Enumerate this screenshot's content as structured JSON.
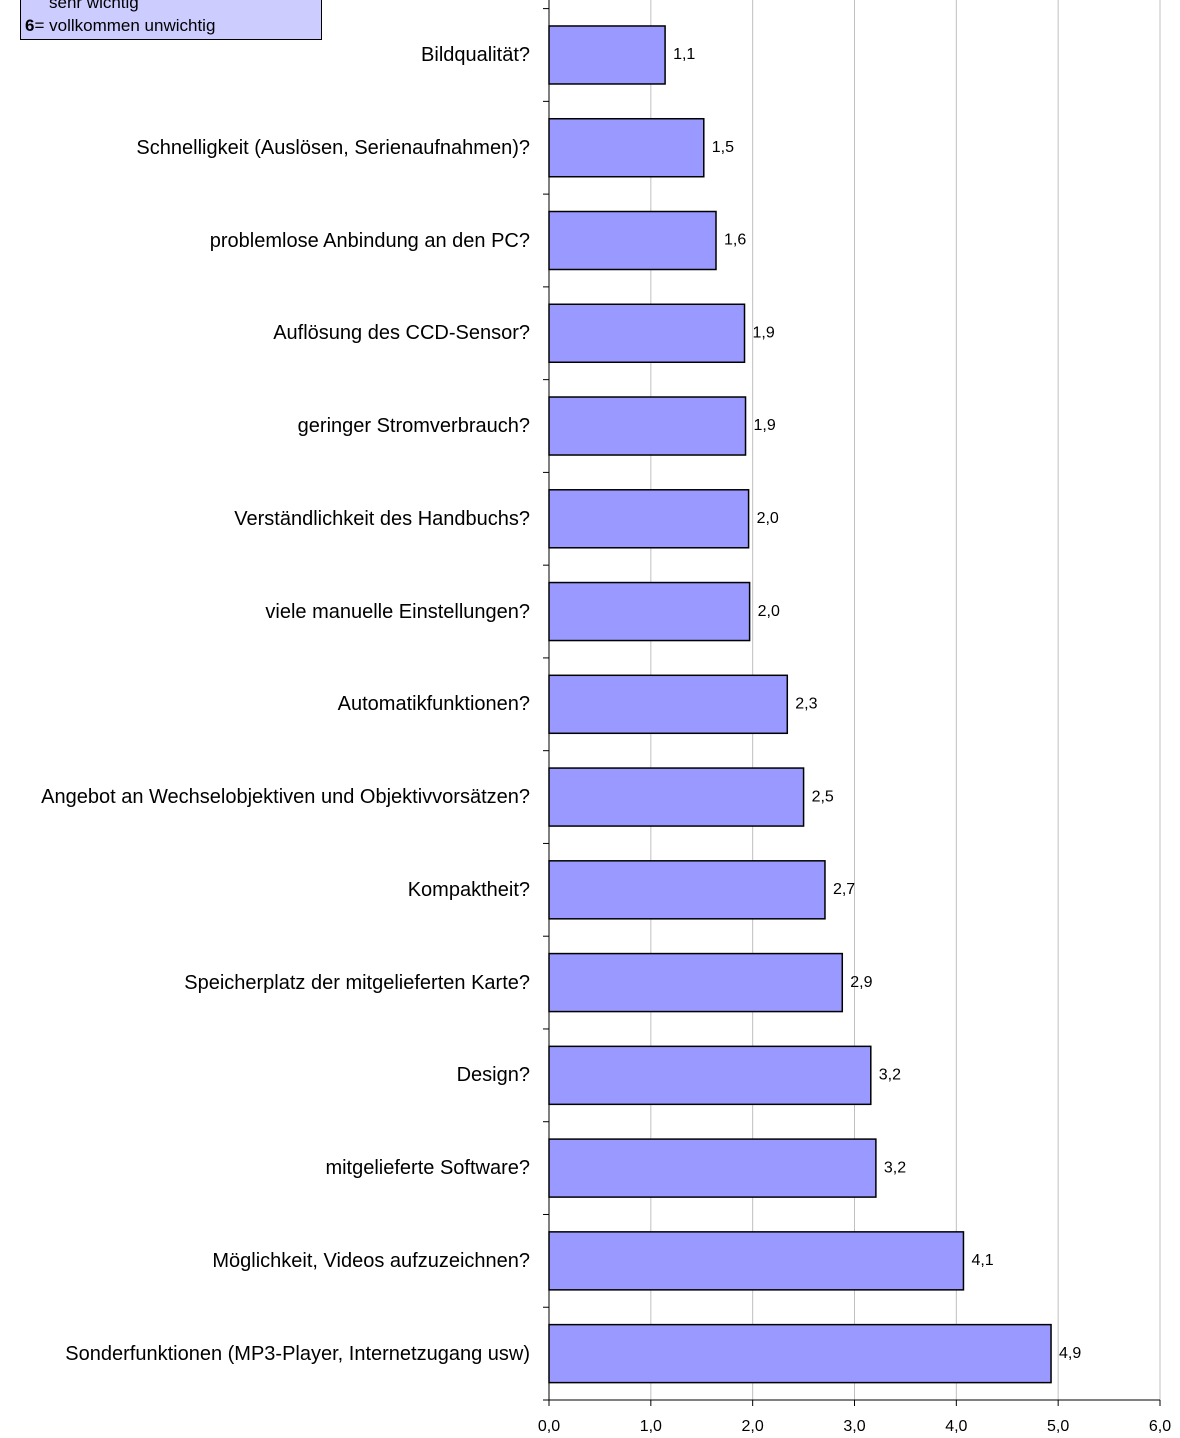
{
  "chart_data": {
    "type": "bar",
    "orientation": "horizontal",
    "categories": [
      "Bildqualität?",
      "Schnelligkeit (Auslösen, Serienaufnahmen)?",
      "problemlose Anbindung an den PC?",
      "Auflösung des CCD-Sensor?",
      "geringer Stromverbrauch?",
      "Verständlichkeit des Handbuchs?",
      "viele manuelle Einstellungen?",
      "Automatikfunktionen?",
      "Angebot an Wechselobjektiven und Objektivvorsätzen?",
      "Kompaktheit?",
      "Speicherplatz der mitgelieferten Karte?",
      "Design?",
      "mitgelieferte Software?",
      "Möglichkeit, Videos aufzuzeichnen?",
      "Sonderfunktionen (MP3-Player, Internetzugang usw)"
    ],
    "values": [
      1.14,
      1.52,
      1.64,
      1.92,
      1.93,
      1.96,
      1.97,
      2.34,
      2.5,
      2.71,
      2.88,
      3.16,
      3.21,
      4.07,
      4.93
    ],
    "value_labels": [
      "1,1",
      "1,5",
      "1,6",
      "1,9",
      "1,9",
      "2,0",
      "2,0",
      "2,3",
      "2,5",
      "2,7",
      "2,9",
      "3,2",
      "3,2",
      "4,1",
      "4,9"
    ],
    "color": "#9999ff",
    "xlim": [
      0,
      6
    ],
    "xticks": [
      {
        "value": 0,
        "label": "0,0"
      },
      {
        "value": 1,
        "label": "1,0"
      },
      {
        "value": 2,
        "label": "2,0"
      },
      {
        "value": 3,
        "label": "3,0"
      },
      {
        "value": 4,
        "label": "4,0"
      },
      {
        "value": 5,
        "label": "5,0"
      },
      {
        "value": 6,
        "label": "6,0"
      }
    ],
    "grid": true,
    "legend_notes": [
      {
        "text": "sehr wichtig"
      },
      {
        "key": "6",
        "text": "= vollkommen unwichtig"
      }
    ]
  }
}
